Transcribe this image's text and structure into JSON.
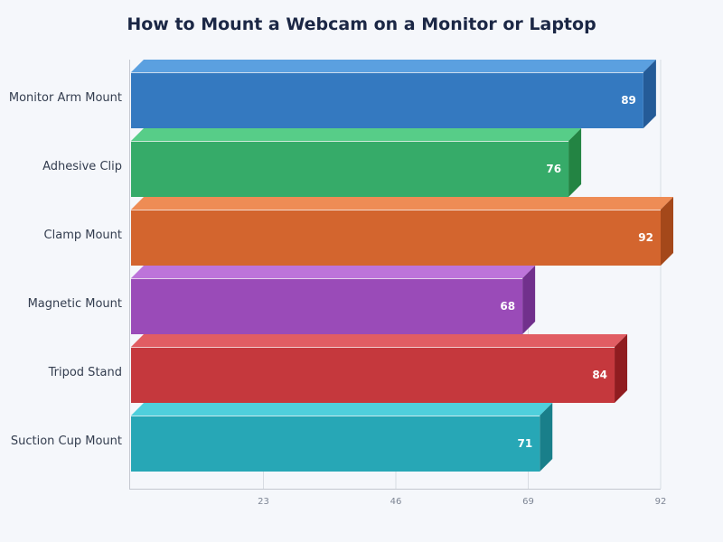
{
  "chart_data": {
    "type": "bar",
    "orientation": "horizontal",
    "style": "3d",
    "title": "How to Mount a Webcam on a Monitor or Laptop",
    "xlabel": "",
    "ylabel": "",
    "categories": [
      "Monitor Arm Mount",
      "Adhesive Clip",
      "Clamp Mount",
      "Magnetic Mount",
      "Tripod Stand",
      "Suction Cup Mount"
    ],
    "values": [
      89,
      76,
      92,
      68,
      84,
      71
    ],
    "colors": [
      {
        "front": "#3479c0",
        "top": "#5ba0e0",
        "side": "#245b98"
      },
      {
        "front": "#36ab69",
        "top": "#57cd88",
        "side": "#238443"
      },
      {
        "front": "#d3652e",
        "top": "#ee8c55",
        "side": "#a4481a"
      },
      {
        "front": "#9a4bb8",
        "top": "#bd74da",
        "side": "#71308c"
      },
      {
        "front": "#c5383d",
        "top": "#e15d63",
        "side": "#901c20"
      },
      {
        "front": "#27a7b6",
        "top": "#4fcfdc",
        "side": "#197f8a"
      }
    ],
    "xticks": [
      "23",
      "46",
      "69",
      "92"
    ],
    "xlim": [
      0,
      92
    ],
    "grid": true,
    "legend": "none"
  }
}
